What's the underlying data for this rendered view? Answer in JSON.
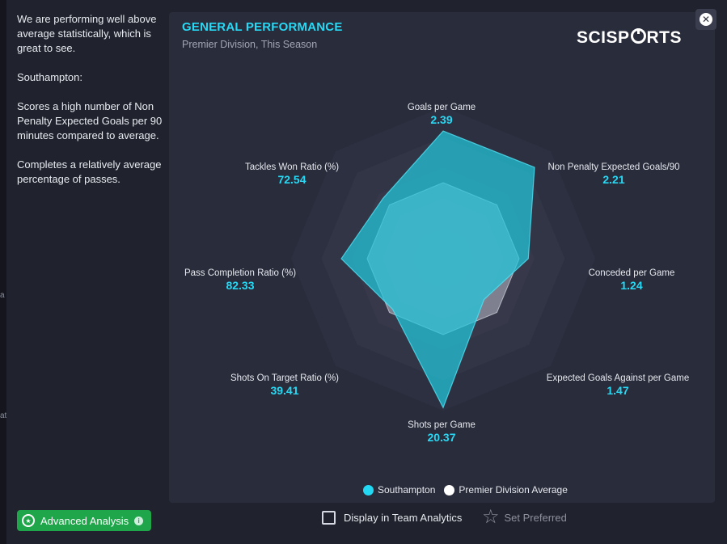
{
  "summary": {
    "p1": "We are performing well above average statistically, which is great to see.",
    "p2": "Southampton:",
    "p3": "Scores a high number of Non Penalty Expected Goals per 90 minutes compared to average.",
    "p4": "Completes a relatively average percentage of passes."
  },
  "panel": {
    "title": "GENERAL PERFORMANCE",
    "subtitle": "Premier Division, This Season",
    "logo_left": "SCISP",
    "logo_right": "RTS"
  },
  "chart_data": {
    "type": "radar",
    "axes": [
      {
        "label": "Goals per Game",
        "value": "2.39"
      },
      {
        "label": "Non Penalty Expected Goals/90",
        "value": "2.21"
      },
      {
        "label": "Conceded per Game",
        "value": "1.24"
      },
      {
        "label": "Expected Goals Against per Game",
        "value": "1.47"
      },
      {
        "label": "Shots per Game",
        "value": "20.37"
      },
      {
        "label": "Shots On Target Ratio (%)",
        "value": "39.41"
      },
      {
        "label": "Pass Completion Ratio (%)",
        "value": "82.33"
      },
      {
        "label": "Tackles Won Ratio (%)",
        "value": "72.54"
      }
    ],
    "scale_max": 1,
    "rings": 5,
    "series": [
      {
        "name": "Premier Division Average",
        "color": "#b9bcc8",
        "values": [
          0.5,
          0.5,
          0.5,
          0.5,
          0.5,
          0.5,
          0.5,
          0.5
        ]
      },
      {
        "name": "Southampton",
        "color": "#22c7dc",
        "values": [
          0.84,
          0.85,
          0.56,
          0.38,
          0.98,
          0.47,
          0.67,
          0.56
        ]
      }
    ]
  },
  "legend": {
    "southampton": "Southampton",
    "southampton_color": "#22d8f2",
    "average": "Premier Division Average",
    "average_color": "#ffffff"
  },
  "footer": {
    "advanced": "Advanced Analysis",
    "display_team": "Display in Team Analytics",
    "set_preferred": "Set Preferred"
  },
  "edge": {
    "frag1": "a",
    "frag2": "at"
  },
  "icons": [
    "close-icon",
    "star-circle-icon",
    "info-icon",
    "checkbox-icon",
    "star-outline-icon"
  ]
}
